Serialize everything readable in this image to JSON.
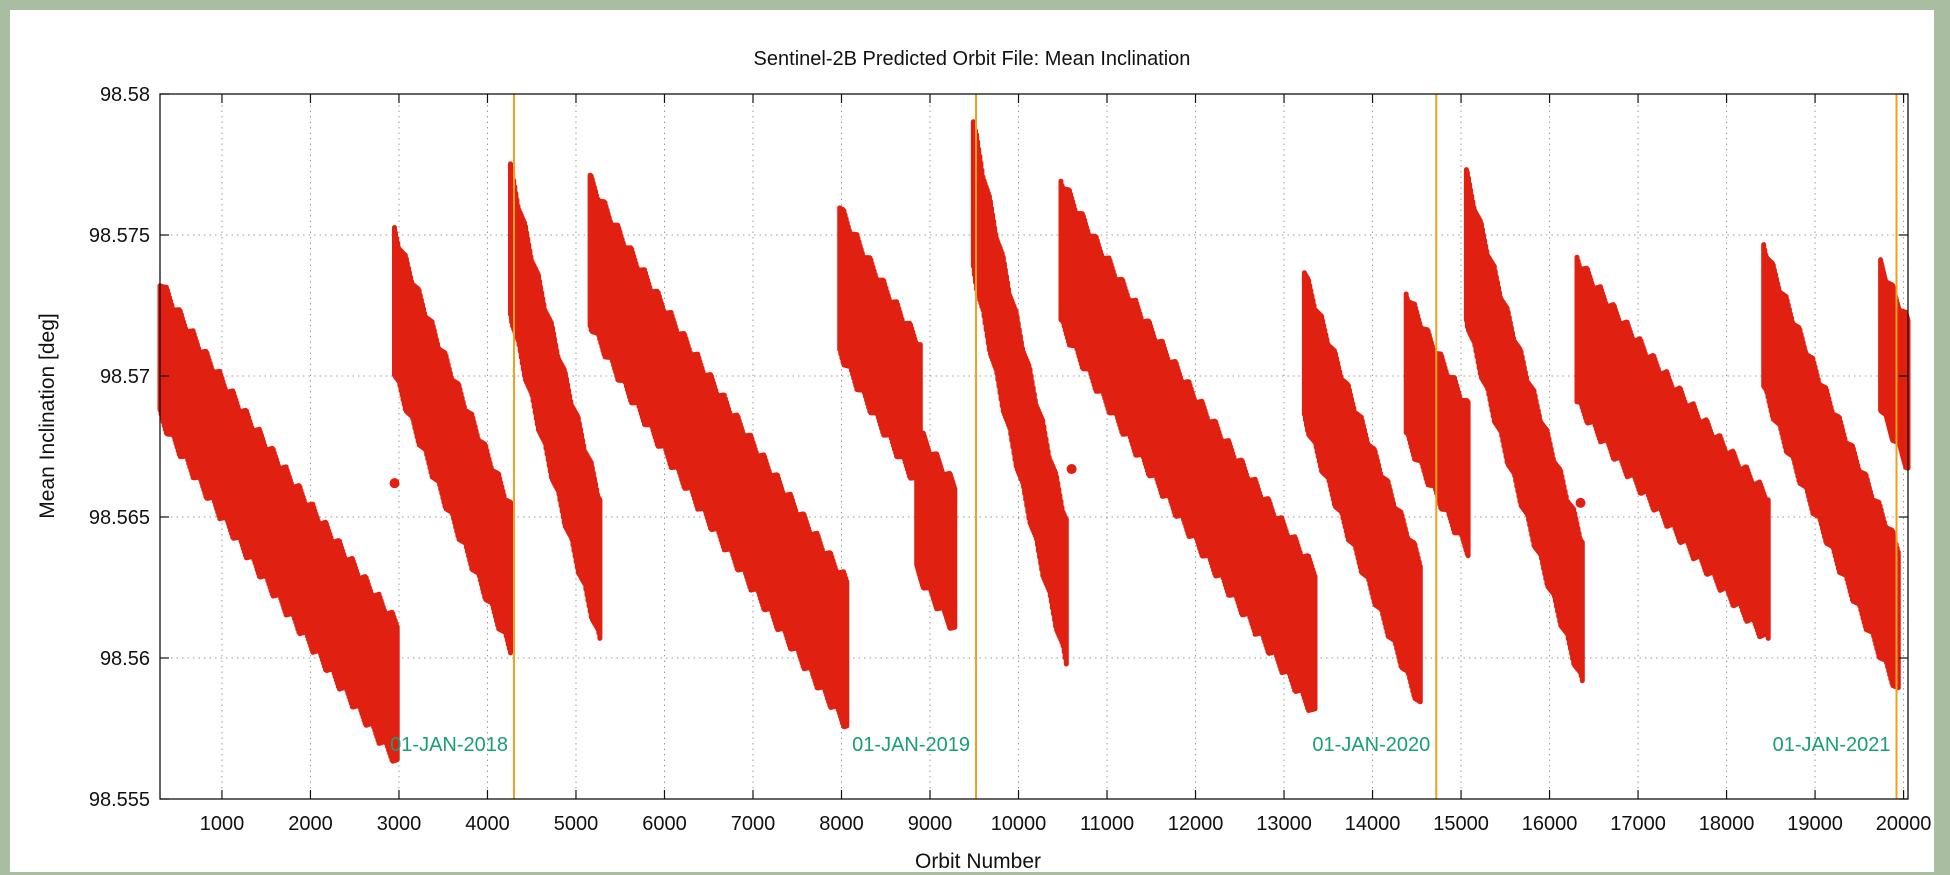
{
  "chart_data": {
    "type": "scatter",
    "title": "Sentinel-2B Predicted Orbit File: Mean Inclination",
    "xlabel": "Orbit Number",
    "ylabel": "Mean Inclination [deg]",
    "xlim": [
      300,
      20050
    ],
    "ylim": [
      98.555,
      98.58
    ],
    "xticks": [
      "1000",
      "2000",
      "3000",
      "4000",
      "5000",
      "6000",
      "7000",
      "8000",
      "9000",
      "10000",
      "11000",
      "12000",
      "13000",
      "14000",
      "15000",
      "16000",
      "17000",
      "18000",
      "19000",
      "20000"
    ],
    "yticks": [
      "98.555",
      "98.56",
      "98.565",
      "98.57",
      "98.575",
      "98.58"
    ],
    "grid": true,
    "legend": "none",
    "colors": {
      "points": "#e02010",
      "markers": "#f0a020",
      "marker_text": "#18a070",
      "frame": "#a9bea0"
    },
    "markers": [
      {
        "x": 4300,
        "label": "01-JAN-2018"
      },
      {
        "x": 9520,
        "label": "01-JAN-2019"
      },
      {
        "x": 14720,
        "label": "01-JAN-2020"
      },
      {
        "x": 19920,
        "label": "01-JAN-2021"
      }
    ],
    "segments": [
      {
        "x_start": 300,
        "x_end": 2980,
        "y_start_top": 98.5732,
        "y_start_bottom": 98.5688,
        "y_end_top": 98.561,
        "y_end_bottom": 98.5565
      },
      {
        "x_start": 2950,
        "x_end": 4260,
        "y_start_top": 98.575,
        "y_end_bottom": 98.5605
      },
      {
        "x_start": 4260,
        "x_end": 5270,
        "y_start_top": 98.5772,
        "y_end_bottom": 98.5608
      },
      {
        "x_start": 5160,
        "x_end": 8060,
        "y_start_top": 98.5768,
        "y_end_bottom": 98.5578
      },
      {
        "x_start": 7980,
        "x_end": 8890,
        "y_start_top": 98.5758,
        "y_end_bottom": 98.5662
      },
      {
        "x_start": 8850,
        "x_end": 9280,
        "y_start_top": 98.568,
        "y_end_bottom": 98.5612
      },
      {
        "x_start": 9490,
        "x_end": 10540,
        "y_start_top": 98.5788,
        "y_end_bottom": 98.56
      },
      {
        "x_start": 10480,
        "x_end": 13350,
        "y_start_top": 98.5768,
        "y_end_bottom": 98.5582
      },
      {
        "x_start": 13230,
        "x_end": 14540,
        "y_start_top": 98.5735,
        "y_end_bottom": 98.5585
      },
      {
        "x_start": 14380,
        "x_end": 15080,
        "y_start_top": 98.5728,
        "y_end_bottom": 98.564
      },
      {
        "x_start": 15060,
        "x_end": 16370,
        "y_start_top": 98.577,
        "y_end_bottom": 98.5593
      },
      {
        "x_start": 16310,
        "x_end": 18470,
        "y_start_top": 98.574,
        "y_end_bottom": 98.5608
      },
      {
        "x_start": 18420,
        "x_end": 19940,
        "y_start_top": 98.5745,
        "y_end_bottom": 98.559
      },
      {
        "x_start": 19740,
        "x_end": 20050,
        "y_start_top": 98.5738,
        "y_end_bottom": 98.567
      }
    ],
    "isolated_points": [
      {
        "x": 2950,
        "y": 98.5662
      },
      {
        "x": 10600,
        "y": 98.5667
      },
      {
        "x": 16350,
        "y": 98.5655
      }
    ]
  }
}
